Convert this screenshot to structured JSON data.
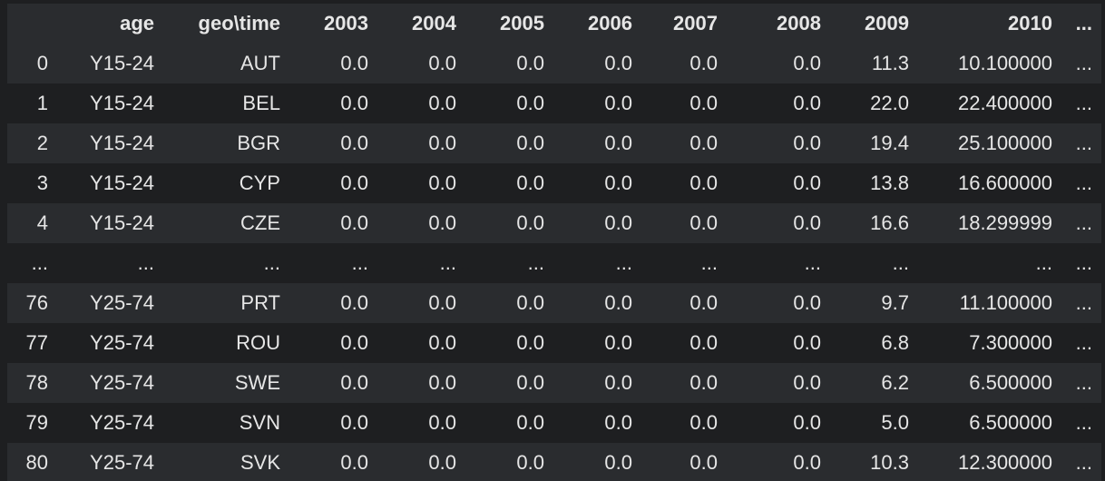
{
  "table": {
    "columns": [
      "",
      "age",
      "geo\\time",
      "2003",
      "2004",
      "2005",
      "2006",
      "2007",
      "2008",
      "2009",
      "2010",
      "..."
    ],
    "rows": [
      [
        "0",
        "Y15-24",
        "AUT",
        "0.0",
        "0.0",
        "0.0",
        "0.0",
        "0.0",
        "0.0",
        "11.3",
        "10.100000",
        "..."
      ],
      [
        "1",
        "Y15-24",
        "BEL",
        "0.0",
        "0.0",
        "0.0",
        "0.0",
        "0.0",
        "0.0",
        "22.0",
        "22.400000",
        "..."
      ],
      [
        "2",
        "Y15-24",
        "BGR",
        "0.0",
        "0.0",
        "0.0",
        "0.0",
        "0.0",
        "0.0",
        "19.4",
        "25.100000",
        "..."
      ],
      [
        "3",
        "Y15-24",
        "CYP",
        "0.0",
        "0.0",
        "0.0",
        "0.0",
        "0.0",
        "0.0",
        "13.8",
        "16.600000",
        "..."
      ],
      [
        "4",
        "Y15-24",
        "CZE",
        "0.0",
        "0.0",
        "0.0",
        "0.0",
        "0.0",
        "0.0",
        "16.6",
        "18.299999",
        "..."
      ],
      [
        "...",
        "...",
        "...",
        "...",
        "...",
        "...",
        "...",
        "...",
        "...",
        "...",
        "...",
        "..."
      ],
      [
        "76",
        "Y25-74",
        "PRT",
        "0.0",
        "0.0",
        "0.0",
        "0.0",
        "0.0",
        "0.0",
        "9.7",
        "11.100000",
        "..."
      ],
      [
        "77",
        "Y25-74",
        "ROU",
        "0.0",
        "0.0",
        "0.0",
        "0.0",
        "0.0",
        "0.0",
        "6.8",
        "7.300000",
        "..."
      ],
      [
        "78",
        "Y25-74",
        "SWE",
        "0.0",
        "0.0",
        "0.0",
        "0.0",
        "0.0",
        "0.0",
        "6.2",
        "6.500000",
        "..."
      ],
      [
        "79",
        "Y25-74",
        "SVN",
        "0.0",
        "0.0",
        "0.0",
        "0.0",
        "0.0",
        "0.0",
        "5.0",
        "6.500000",
        "..."
      ],
      [
        "80",
        "Y25-74",
        "SVK",
        "0.0",
        "0.0",
        "0.0",
        "0.0",
        "0.0",
        "0.0",
        "10.3",
        "12.300000",
        "..."
      ]
    ]
  }
}
